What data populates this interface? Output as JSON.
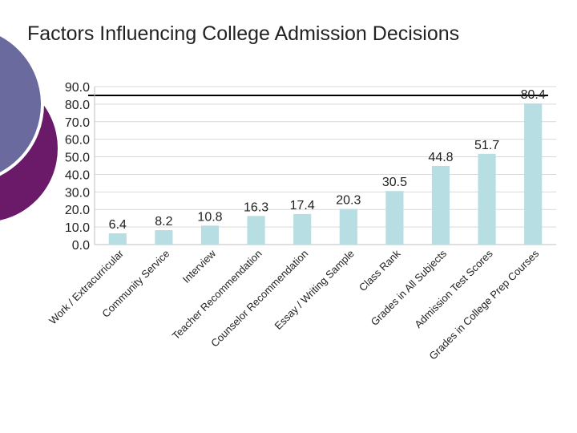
{
  "slide": {
    "title": "Factors Influencing College Admission Decisions",
    "accent_colors": {
      "lavender": "#6a6a9e",
      "purple": "#6b1a6a"
    }
  },
  "chart_data": {
    "type": "bar",
    "title": "",
    "xlabel": "",
    "ylabel": "",
    "categories": [
      "Work / Extracurricular",
      "Community Service",
      "Interview",
      "Teacher Recommendation",
      "Counselor Recommendation",
      "Essay / Writing Sample",
      "Class Rank",
      "Grades in All Subjects",
      "Admission Test Scores",
      "Grades in College Prep Courses"
    ],
    "values": [
      6.4,
      8.2,
      10.8,
      16.3,
      17.4,
      20.3,
      30.5,
      44.8,
      51.7,
      80.4
    ],
    "value_labels": [
      "6.4",
      "8.2",
      "10.8",
      "16.3",
      "17.4",
      "20.3",
      "30.5",
      "44.8",
      "51.7",
      "80.4"
    ],
    "ylim": [
      0,
      90
    ],
    "yticks": [
      "0.0",
      "10.0",
      "20.0",
      "30.0",
      "40.0",
      "50.0",
      "60.0",
      "70.0",
      "80.0",
      "90.0"
    ],
    "grid": true,
    "legend": "none",
    "bar_color": "#b7dee3",
    "grid_color": "#d9d9d9",
    "axis_color": "#bfbfbf"
  }
}
